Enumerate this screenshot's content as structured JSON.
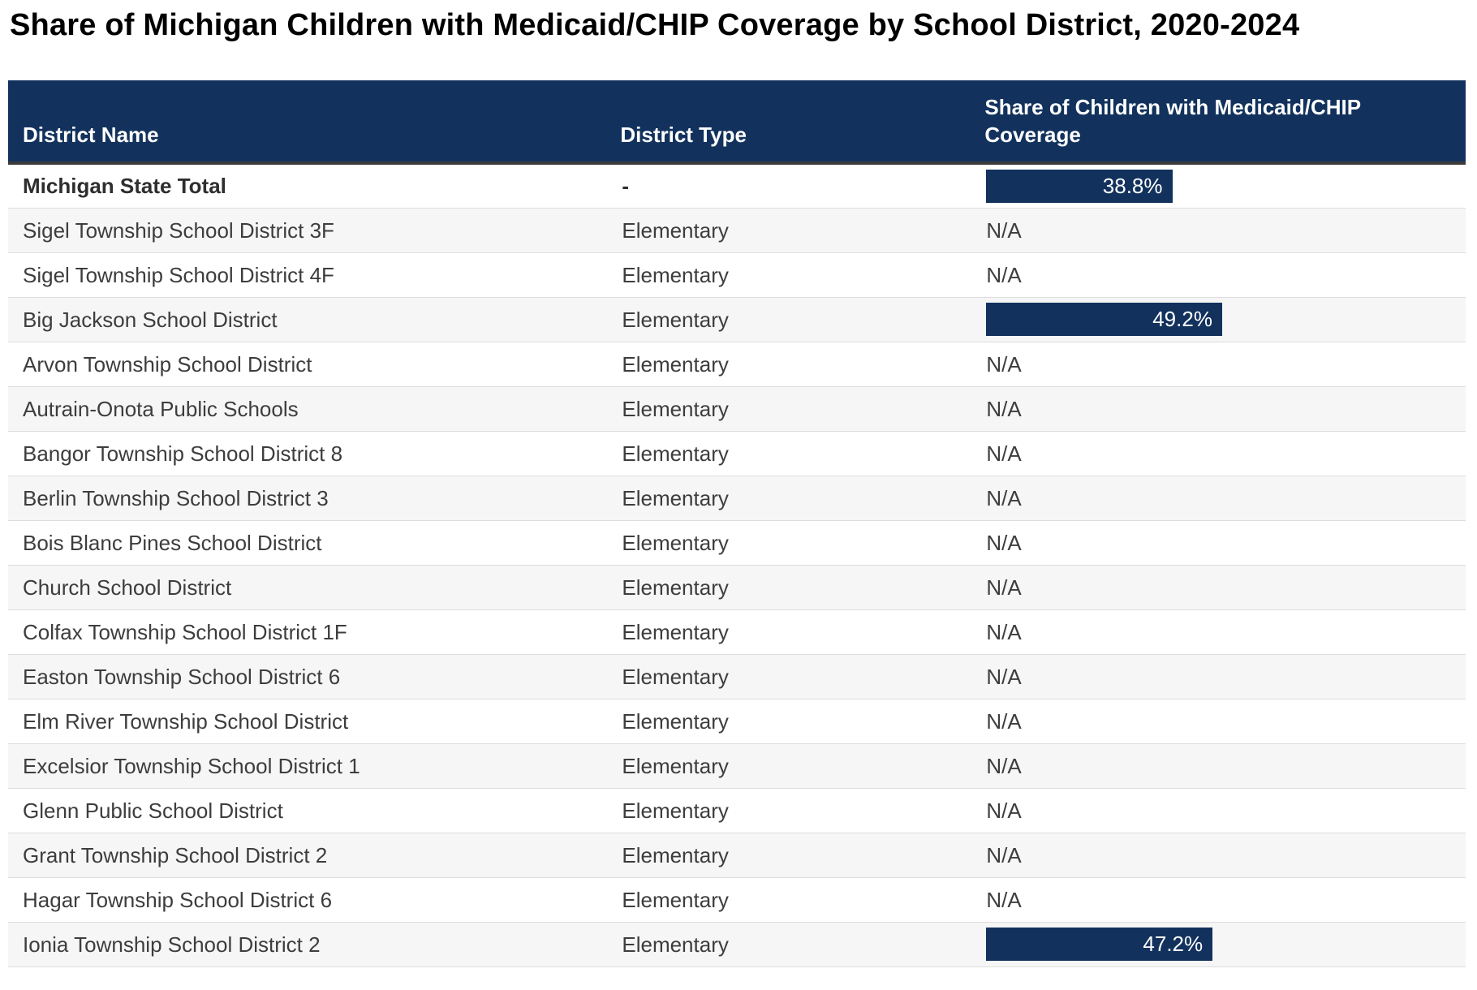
{
  "title": "Share of Michigan Children with Medicaid/CHIP Coverage by School District, 2020-2024",
  "colors": {
    "header_bg": "#12325d",
    "bar_fill": "#12325d",
    "zebra_row_bg": "#f6f6f6",
    "row_divider": "#dddddd",
    "header_underline": "#3b3b3b",
    "header_text": "#ffffff",
    "body_text": "#3d3d3d"
  },
  "na_label": "N/A",
  "chart_data": {
    "type": "table",
    "title": "Share of Michigan Children with Medicaid/CHIP Coverage by School District, 2020-2024",
    "columns": [
      {
        "key": "name",
        "label": "District Name"
      },
      {
        "key": "type",
        "label": "District Type"
      },
      {
        "key": "share",
        "label": "Share of Children with Medicaid/CHIP Coverage"
      }
    ],
    "bar_scale_max_percent": 100,
    "rows": [
      {
        "name": "Michigan State Total",
        "type": "-",
        "share_label": "38.8%",
        "share_value": 38.8,
        "is_total": true
      },
      {
        "name": "Sigel Township School District 3F",
        "type": "Elementary",
        "share_label": "N/A",
        "share_value": null,
        "is_total": false
      },
      {
        "name": "Sigel Township School District 4F",
        "type": "Elementary",
        "share_label": "N/A",
        "share_value": null,
        "is_total": false
      },
      {
        "name": "Big Jackson School District",
        "type": "Elementary",
        "share_label": "49.2%",
        "share_value": 49.2,
        "is_total": false
      },
      {
        "name": "Arvon Township School District",
        "type": "Elementary",
        "share_label": "N/A",
        "share_value": null,
        "is_total": false
      },
      {
        "name": "Autrain-Onota Public Schools",
        "type": "Elementary",
        "share_label": "N/A",
        "share_value": null,
        "is_total": false
      },
      {
        "name": "Bangor Township School District 8",
        "type": "Elementary",
        "share_label": "N/A",
        "share_value": null,
        "is_total": false
      },
      {
        "name": "Berlin Township School District 3",
        "type": "Elementary",
        "share_label": "N/A",
        "share_value": null,
        "is_total": false
      },
      {
        "name": "Bois Blanc Pines School District",
        "type": "Elementary",
        "share_label": "N/A",
        "share_value": null,
        "is_total": false
      },
      {
        "name": "Church School District",
        "type": "Elementary",
        "share_label": "N/A",
        "share_value": null,
        "is_total": false
      },
      {
        "name": "Colfax Township School District 1F",
        "type": "Elementary",
        "share_label": "N/A",
        "share_value": null,
        "is_total": false
      },
      {
        "name": "Easton Township School District 6",
        "type": "Elementary",
        "share_label": "N/A",
        "share_value": null,
        "is_total": false
      },
      {
        "name": "Elm River Township School District",
        "type": "Elementary",
        "share_label": "N/A",
        "share_value": null,
        "is_total": false
      },
      {
        "name": "Excelsior Township School District 1",
        "type": "Elementary",
        "share_label": "N/A",
        "share_value": null,
        "is_total": false
      },
      {
        "name": "Glenn Public School District",
        "type": "Elementary",
        "share_label": "N/A",
        "share_value": null,
        "is_total": false
      },
      {
        "name": "Grant Township School District 2",
        "type": "Elementary",
        "share_label": "N/A",
        "share_value": null,
        "is_total": false
      },
      {
        "name": "Hagar Township School District 6",
        "type": "Elementary",
        "share_label": "N/A",
        "share_value": null,
        "is_total": false
      },
      {
        "name": "Ionia Township School District 2",
        "type": "Elementary",
        "share_label": "47.2%",
        "share_value": 47.2,
        "is_total": false
      }
    ]
  }
}
